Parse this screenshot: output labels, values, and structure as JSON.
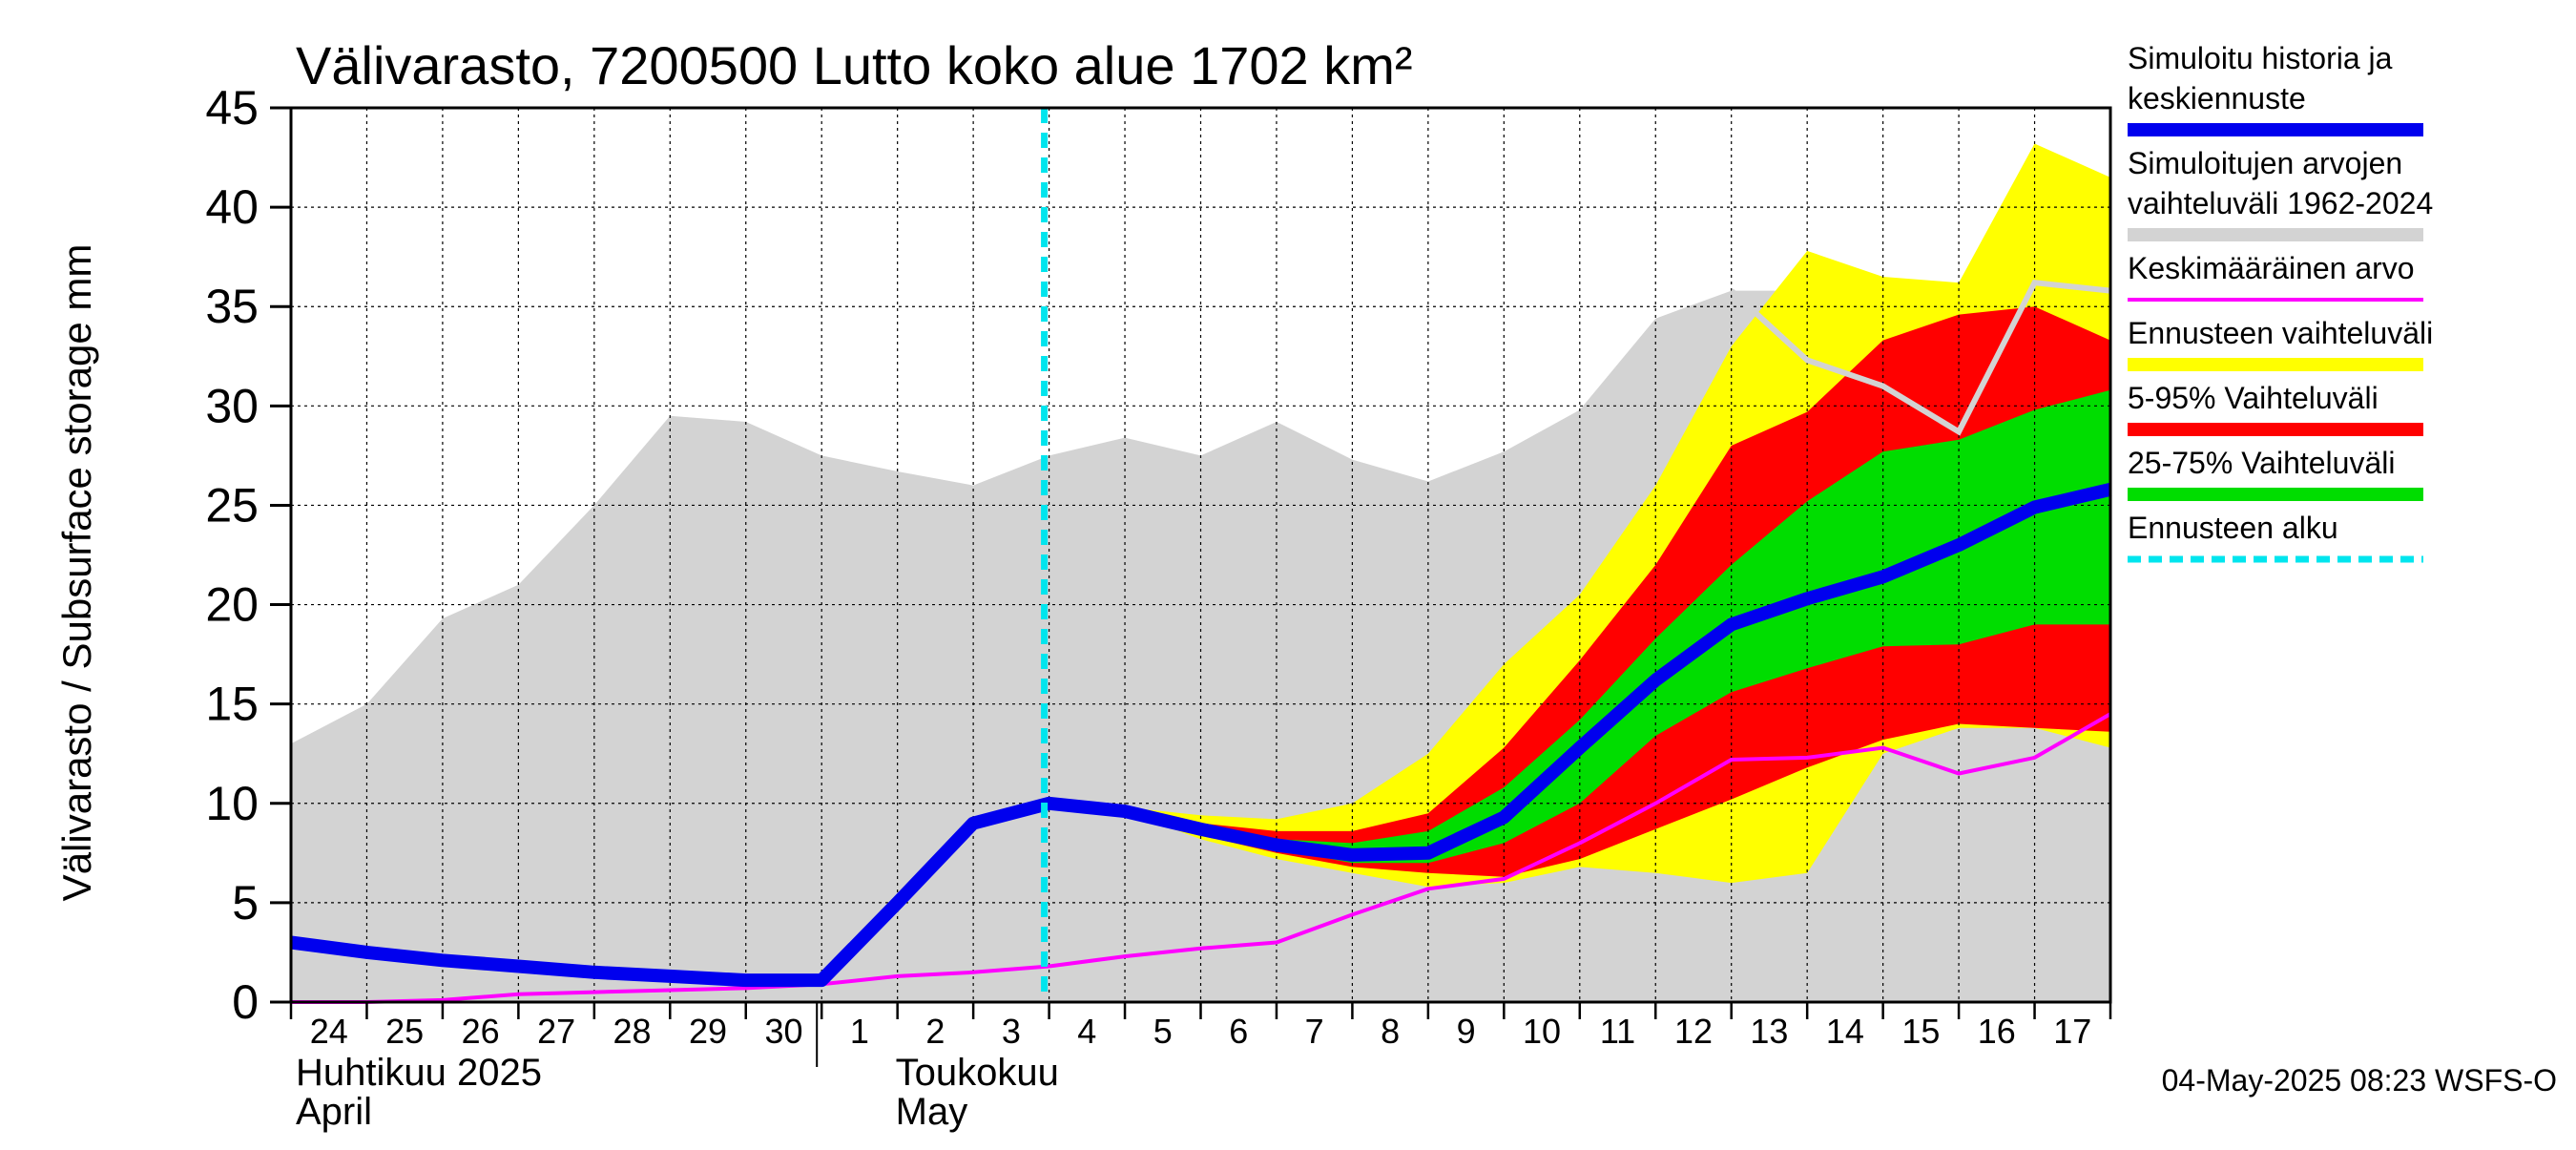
{
  "chart_data": {
    "type": "area",
    "title": "Välivarasto, 7200500 Lutto koko alue 1702 km²",
    "ylabel": "Välivarasto / Subsurface storage  mm",
    "ylim": [
      0,
      45
    ],
    "yticks": [
      0,
      5,
      10,
      15,
      20,
      25,
      30,
      35,
      40,
      45
    ],
    "x_tick_labels": [
      "24",
      "25",
      "26",
      "27",
      "28",
      "29",
      "30",
      "1",
      "2",
      "3",
      "4",
      "5",
      "6",
      "7",
      "8",
      "9",
      "10",
      "11",
      "12",
      "13",
      "14",
      "15",
      "16",
      "17"
    ],
    "x_day_index": [
      0,
      1,
      2,
      3,
      4,
      5,
      6,
      7,
      8,
      9,
      10,
      11,
      12,
      13,
      14,
      15,
      16,
      17,
      18,
      19,
      20,
      21,
      22,
      23,
      24
    ],
    "month_labels": [
      {
        "line1": "Huhtikuu  2025",
        "line2": "April"
      },
      {
        "line1": "Toukokuu",
        "line2": "May"
      }
    ],
    "forecast_start_index": 10,
    "colors": {
      "history_band": "#d3d3d3",
      "forecast_range": "#ffff00",
      "p5_95": "#ff0000",
      "p25_75": "#00dd00",
      "median": "#0000ee",
      "mean": "#ff00ff",
      "mean_grey": "#d3d3d3",
      "forecast_start": "#00e5ee"
    },
    "series": [
      {
        "name": "history_max",
        "values": [
          13.0,
          15.0,
          19.3,
          21.0,
          25.0,
          29.5,
          29.2,
          27.5,
          26.7,
          26.0,
          27.5,
          28.4,
          27.5,
          29.2,
          27.3,
          26.2,
          27.7,
          29.8,
          34.4,
          35.8,
          null,
          null,
          null,
          null,
          null
        ]
      },
      {
        "name": "history_min",
        "values": [
          0,
          0,
          0,
          0,
          0,
          0,
          0,
          0,
          0,
          0,
          0,
          0,
          0,
          0,
          0,
          0,
          0,
          0,
          0,
          0,
          0,
          0,
          0,
          0,
          0
        ]
      },
      {
        "name": "range_max",
        "values": [
          null,
          null,
          null,
          null,
          null,
          null,
          null,
          null,
          null,
          null,
          10.0,
          9.8,
          9.4,
          9.2,
          10.0,
          12.5,
          17.0,
          20.5,
          26.0,
          33.0,
          37.8,
          36.5,
          36.2,
          43.2,
          41.5
        ]
      },
      {
        "name": "range_min",
        "values": [
          null,
          null,
          null,
          null,
          null,
          null,
          null,
          null,
          null,
          null,
          10.0,
          9.6,
          8.2,
          7.2,
          6.5,
          5.8,
          6.0,
          6.8,
          6.5,
          6.0,
          6.5,
          12.5,
          13.8,
          13.8,
          12.8
        ]
      },
      {
        "name": "p95",
        "values": [
          null,
          null,
          null,
          null,
          null,
          null,
          null,
          null,
          null,
          null,
          10.0,
          9.7,
          9.0,
          8.6,
          8.6,
          9.5,
          12.8,
          17.2,
          22.0,
          28.0,
          29.7,
          33.3,
          34.6,
          35.0,
          33.3
        ]
      },
      {
        "name": "p5",
        "values": [
          null,
          null,
          null,
          null,
          null,
          null,
          null,
          null,
          null,
          null,
          10.0,
          9.6,
          8.4,
          7.5,
          6.8,
          6.5,
          6.3,
          7.2,
          8.7,
          10.2,
          11.8,
          13.2,
          14.0,
          13.8,
          13.6
        ]
      },
      {
        "name": "p75",
        "values": [
          null,
          null,
          null,
          null,
          null,
          null,
          null,
          null,
          null,
          null,
          10.0,
          9.7,
          8.8,
          8.2,
          8.0,
          8.6,
          10.8,
          14.2,
          18.3,
          22.0,
          25.2,
          27.7,
          28.3,
          29.8,
          30.8
        ]
      },
      {
        "name": "p25",
        "values": [
          null,
          null,
          null,
          null,
          null,
          null,
          null,
          null,
          null,
          null,
          10.0,
          9.6,
          8.5,
          7.7,
          7.0,
          7.0,
          8.0,
          10.0,
          13.4,
          15.6,
          16.8,
          17.9,
          18.0,
          19.0,
          19.0
        ]
      },
      {
        "name": "Simuloitu historia ja keskiennuste",
        "values": [
          3.0,
          2.5,
          2.1,
          1.8,
          1.5,
          1.3,
          1.1,
          1.1,
          5.0,
          9.0,
          10.0,
          9.6,
          8.7,
          7.9,
          7.4,
          7.5,
          9.3,
          12.8,
          16.2,
          19.0,
          20.3,
          21.4,
          23.0,
          24.9,
          25.8
        ]
      },
      {
        "name": "Keskimääräinen arvo",
        "values": [
          0,
          0,
          0.1,
          0.4,
          0.5,
          0.6,
          0.7,
          0.9,
          1.3,
          1.5,
          1.8,
          2.3,
          2.7,
          3.0,
          4.4,
          5.7,
          6.2,
          8.0,
          10.0,
          12.2,
          12.3,
          12.8,
          11.5,
          12.3,
          14.5
        ]
      },
      {
        "name": "mean_grey_segment",
        "values": [
          null,
          null,
          null,
          null,
          null,
          null,
          null,
          null,
          null,
          null,
          null,
          null,
          null,
          null,
          null,
          null,
          null,
          null,
          null,
          35.8,
          32.3,
          31.0,
          28.7,
          36.2,
          35.8
        ]
      }
    ],
    "legend": [
      {
        "label": "Simuloitu historia ja keskiennuste",
        "lines": [
          "Simuloitu historia ja",
          "keskiennuste"
        ],
        "color": "#0000ee",
        "style": "thick"
      },
      {
        "label": "Simuloitujen arvojen vaihteluväli 1962-2024",
        "lines": [
          "Simuloitujen arvojen",
          "vaihteluväli 1962-2024"
        ],
        "color": "#d3d3d3",
        "style": "thick"
      },
      {
        "label": "Keskimääräinen arvo",
        "lines": [
          "Keskimääräinen arvo"
        ],
        "color": "#ff00ff",
        "style": "thin"
      },
      {
        "label": "Ennusteen vaihteluväli",
        "lines": [
          "Ennusteen vaihteluväli"
        ],
        "color": "#ffff00",
        "style": "thick"
      },
      {
        "label": "5-95% Vaihteluväli",
        "lines": [
          "5-95% Vaihteluväli"
        ],
        "color": "#ff0000",
        "style": "thick"
      },
      {
        "label": "25-75% Vaihteluväli",
        "lines": [
          "25-75% Vaihteluväli"
        ],
        "color": "#00dd00",
        "style": "thick"
      },
      {
        "label": "Ennusteen alku",
        "lines": [
          "Ennusteen alku"
        ],
        "color": "#00e5ee",
        "style": "dashed"
      }
    ],
    "timestamp": "04-May-2025 08:23 WSFS-O"
  }
}
